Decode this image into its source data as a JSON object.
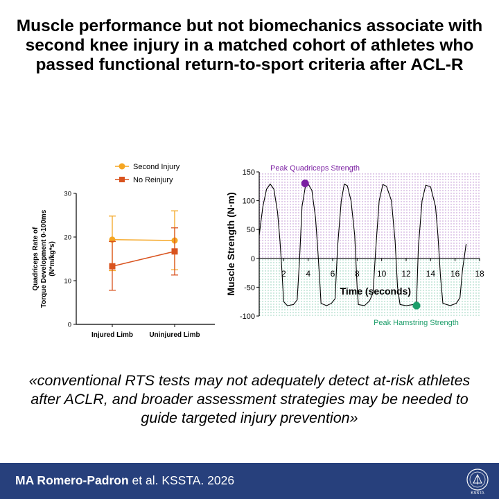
{
  "title": "Muscle performance but not biomechanics associate with second knee injury in a matched cohort of athletes who passed functional return-to-sport criteria after ACL-R",
  "quote": "«conventional RTS tests may not adequately detect at-risk athletes after ACLR, and broader assessment strategies may be needed to guide targeted injury prevention»",
  "footer": {
    "authors": "MA Romero-Padron",
    "citation": " et al. KSSTA. 2026",
    "logo_label": "KSSTA"
  },
  "colors": {
    "footer_bg": "#27407c",
    "second_injury": "#f5a623",
    "no_reinjury": "#d9531e",
    "quad_peak": "#7b1fa2",
    "ham_peak": "#1e9e6b",
    "quad_region": "#7b1fa2",
    "ham_region": "#1e9e6b"
  },
  "chart_data": [
    {
      "type": "line",
      "title": "",
      "xlabel": "",
      "ylabel": "Quadriceps Rate of Torque Development 0-100ms (N*m/kg*s)",
      "ylabel_lines": [
        "Quadriceps Rate of",
        "Torque Development 0-100ms",
        "(N*m/kg*s)"
      ],
      "categories": [
        "Injured Limb",
        "Uninjured Limb"
      ],
      "ylim": [
        0,
        30
      ],
      "yticks": [
        "0",
        "10",
        "20",
        "30"
      ],
      "legend_position": "top",
      "series": [
        {
          "name": "Second Injury",
          "marker": "circle",
          "values": [
            19.4,
            19.2
          ],
          "err_low": [
            12.3,
            12.5
          ],
          "err_high": [
            24.8,
            26.0
          ]
        },
        {
          "name": "No Reinjury",
          "marker": "square",
          "values": [
            13.3,
            16.7
          ],
          "err_low": [
            7.8,
            11.3
          ],
          "err_high": [
            19.0,
            22.1
          ]
        }
      ]
    },
    {
      "type": "line",
      "title": "",
      "xlabel": "Time (seconds)",
      "ylabel": "Muscle Strength (N·m)",
      "xlim": [
        0,
        18
      ],
      "ylim": [
        -100,
        150
      ],
      "xticks": [
        "2",
        "4",
        "6",
        "8",
        "10",
        "12",
        "14",
        "16",
        "18"
      ],
      "yticks": [
        "-100",
        "-50",
        "0",
        "50",
        "100",
        "150"
      ],
      "series": [
        {
          "name": "",
          "points": [
            [
              0.0,
              40
            ],
            [
              0.3,
              90
            ],
            [
              0.6,
              120
            ],
            [
              0.9,
              129
            ],
            [
              1.2,
              120
            ],
            [
              1.5,
              80
            ],
            [
              1.7,
              30
            ],
            [
              1.85,
              -20
            ],
            [
              2.0,
              -75
            ],
            [
              2.3,
              -82
            ],
            [
              2.8,
              -80
            ],
            [
              3.1,
              -72
            ],
            [
              3.3,
              0
            ],
            [
              3.5,
              90
            ],
            [
              3.8,
              128
            ],
            [
              4.0,
              129
            ],
            [
              4.3,
              118
            ],
            [
              4.6,
              70
            ],
            [
              4.8,
              10
            ],
            [
              4.95,
              -40
            ],
            [
              5.05,
              -78
            ],
            [
              5.5,
              -82
            ],
            [
              5.9,
              -78
            ],
            [
              6.2,
              -70
            ],
            [
              6.4,
              20
            ],
            [
              6.7,
              100
            ],
            [
              6.95,
              129
            ],
            [
              7.2,
              126
            ],
            [
              7.5,
              100
            ],
            [
              7.8,
              40
            ],
            [
              8.0,
              -50
            ],
            [
              8.1,
              -80
            ],
            [
              8.6,
              -82
            ],
            [
              9.0,
              -74
            ],
            [
              9.3,
              -60
            ],
            [
              9.5,
              10
            ],
            [
              9.8,
              100
            ],
            [
              10.1,
              128
            ],
            [
              10.4,
              125
            ],
            [
              10.8,
              100
            ],
            [
              11.1,
              30
            ],
            [
              11.3,
              -50
            ],
            [
              11.5,
              -80
            ],
            [
              12.0,
              -82
            ],
            [
              12.6,
              -80
            ],
            [
              12.85,
              -75
            ],
            [
              13.0,
              20
            ],
            [
              13.3,
              100
            ],
            [
              13.6,
              127
            ],
            [
              14.0,
              124
            ],
            [
              14.4,
              90
            ],
            [
              14.6,
              40
            ],
            [
              14.8,
              -30
            ],
            [
              15.0,
              -78
            ],
            [
              15.6,
              -82
            ],
            [
              16.1,
              -78
            ],
            [
              16.4,
              -68
            ],
            [
              16.6,
              -20
            ],
            [
              16.9,
              25
            ]
          ]
        }
      ],
      "annotations": [
        {
          "label": "Peak Quadriceps Strength",
          "x": 3.75,
          "y": 130
        },
        {
          "label": "Peak Hamstring Strength",
          "x": 12.85,
          "y": -82
        }
      ],
      "regions": [
        {
          "name": "quadriceps",
          "y_from": 0,
          "y_to": 150
        },
        {
          "name": "hamstring",
          "y_from": -100,
          "y_to": 0
        }
      ]
    }
  ]
}
